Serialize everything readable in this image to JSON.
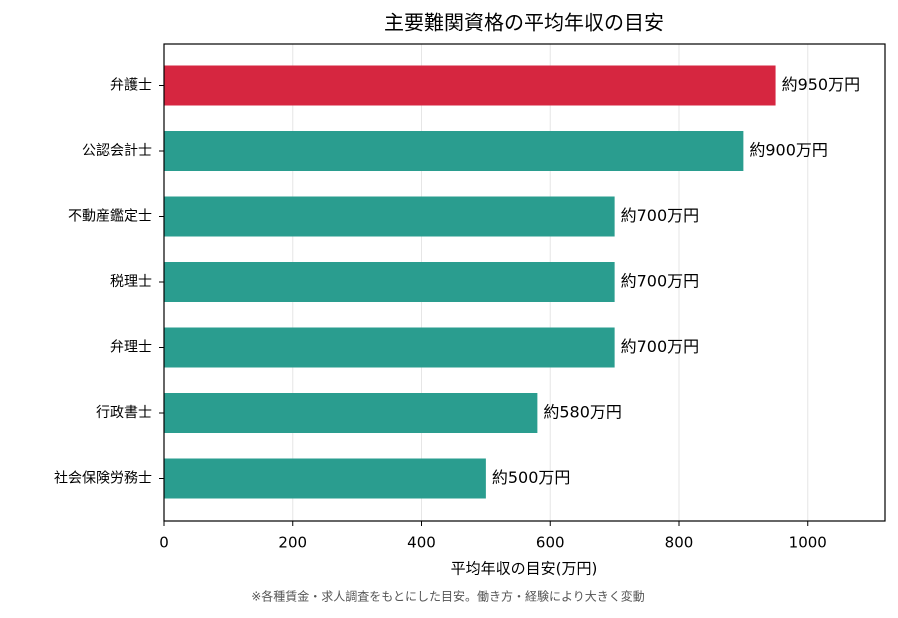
{
  "chart_data": {
    "type": "barh",
    "title": "主要難関資格の平均年収の目安",
    "x_label": "平均年収の目安(万円)",
    "footnote": "※各種賃金・求人調査をもとにした目安。働き方・経験により大きく変動",
    "categories": [
      "弁護士",
      "公認会計士",
      "不動産鑑定士",
      "税理士",
      "弁理士",
      "行政書士",
      "社会保険労務士"
    ],
    "values": [
      950,
      900,
      700,
      700,
      700,
      580,
      500
    ],
    "value_labels": [
      "約950万円",
      "約900万円",
      "約700万円",
      "約700万円",
      "約700万円",
      "約580万円",
      "約500万円"
    ],
    "colors": [
      "#d62640",
      "#2a9d8f",
      "#2a9d8f",
      "#2a9d8f",
      "#2a9d8f",
      "#2a9d8f",
      "#2a9d8f"
    ],
    "xlim": [
      0,
      1120
    ],
    "xticks": [
      0,
      200,
      400,
      600,
      800,
      1000
    ],
    "grid": true
  }
}
